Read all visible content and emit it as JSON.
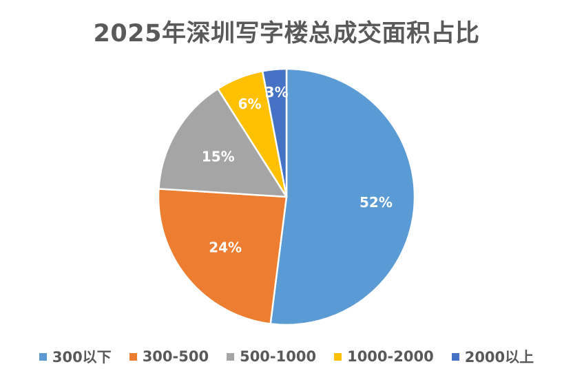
{
  "chart_data": {
    "type": "pie",
    "title": "2025年深圳写字楼总成交面积占比",
    "categories": [
      "300以下",
      "300-500",
      "500-1000",
      "1000-2000",
      "2000以上"
    ],
    "values": [
      52,
      24,
      15,
      6,
      3
    ],
    "labels": [
      "52%",
      "24%",
      "15%",
      "6%",
      "3%"
    ],
    "unit": "%",
    "colors": [
      "#5B9BD5",
      "#ED7D31",
      "#A5A5A5",
      "#FFC000",
      "#4472C4"
    ],
    "legend_position": "bottom"
  }
}
